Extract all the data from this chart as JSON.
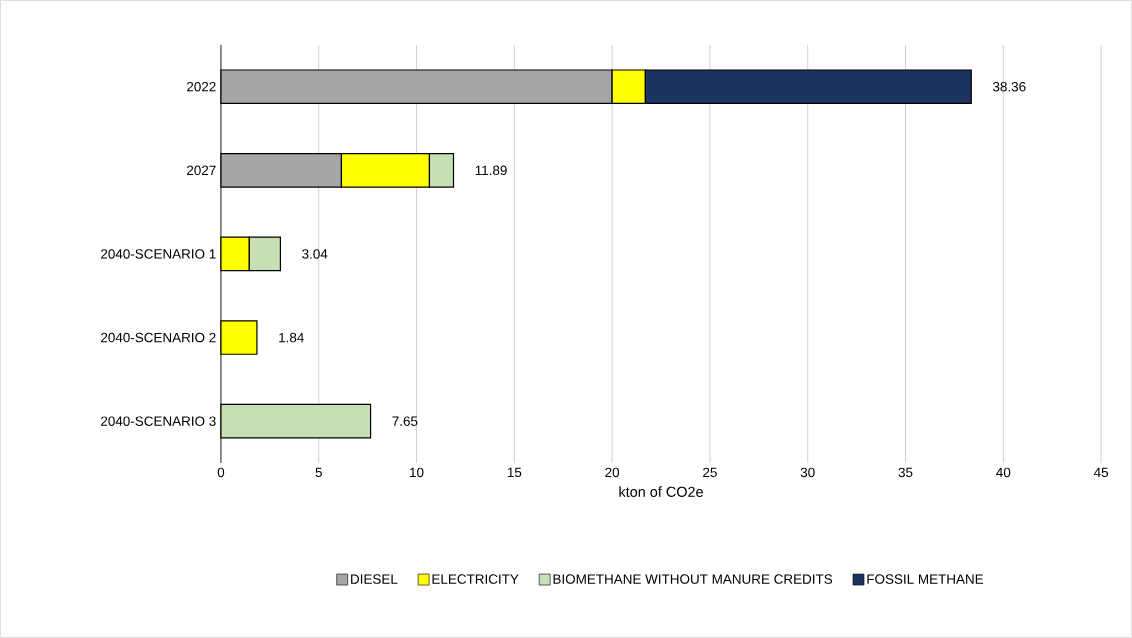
{
  "chart_data": {
    "type": "bar",
    "orientation": "horizontal",
    "stacked": true,
    "xlabel": "kton of CO2e",
    "categories": [
      "2022",
      "2027",
      "2040-SCENARIO 1",
      "2040-SCENARIO 2",
      "2040-SCENARIO 3"
    ],
    "series": [
      {
        "name": "DIESEL",
        "color": "#a6a6a6",
        "values": [
          20.0,
          6.16,
          null,
          null,
          null
        ]
      },
      {
        "name": "ELECTRICITY",
        "color": "#ffff00",
        "values": [
          1.7,
          4.5,
          1.45,
          1.84,
          null
        ]
      },
      {
        "name": "BIOMETHANE WITHOUT MANURE CREDITS",
        "color": "#c6e0b4",
        "values": [
          null,
          1.23,
          1.59,
          null,
          7.65
        ]
      },
      {
        "name": "FOSSIL METHANE",
        "color": "#1b3461",
        "values": [
          16.66,
          null,
          null,
          null,
          null
        ]
      }
    ],
    "totals": [
      "38.36",
      "11.89",
      "3.04",
      "1.84",
      "7.65"
    ],
    "xlim": [
      0,
      45
    ],
    "xticks": [
      0,
      5,
      10,
      15,
      20,
      25,
      30,
      35,
      40,
      45
    ],
    "grid": "x",
    "legend": "bottom"
  }
}
